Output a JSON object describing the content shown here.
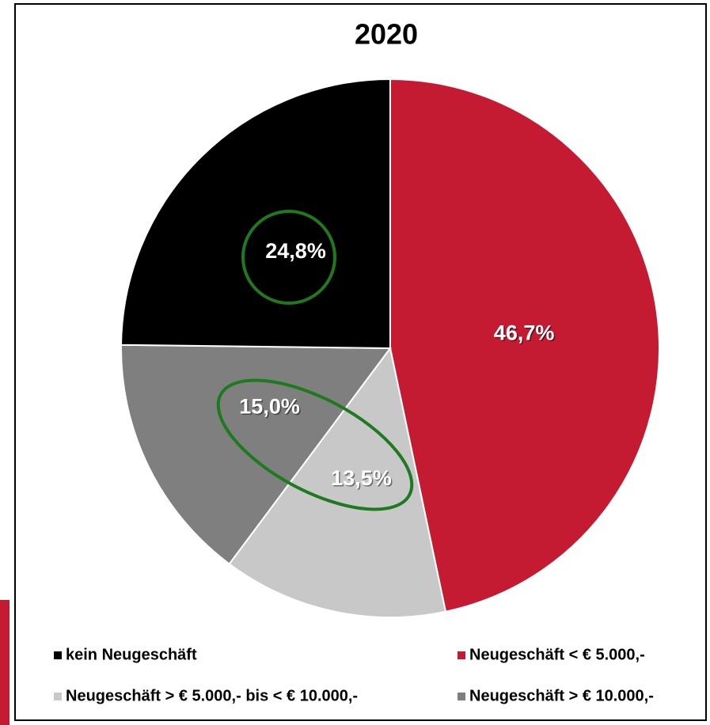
{
  "chart_data": {
    "type": "pie",
    "title": "2020",
    "categories": [
      "Neugeschäft < € 5.000,-",
      "Neugeschäft > € 5.000,- bis < € 10.000,-",
      "Neugeschäft > € 10.000,-",
      "kein Neugeschäft"
    ],
    "values": [
      46.7,
      13.5,
      15.0,
      24.8
    ],
    "value_labels": [
      "46,7%",
      "13,5%",
      "15,0%",
      "24,8%"
    ],
    "colors": [
      "#c41a32",
      "#c8c8c8",
      "#7f7f7f",
      "#000000"
    ]
  }
}
